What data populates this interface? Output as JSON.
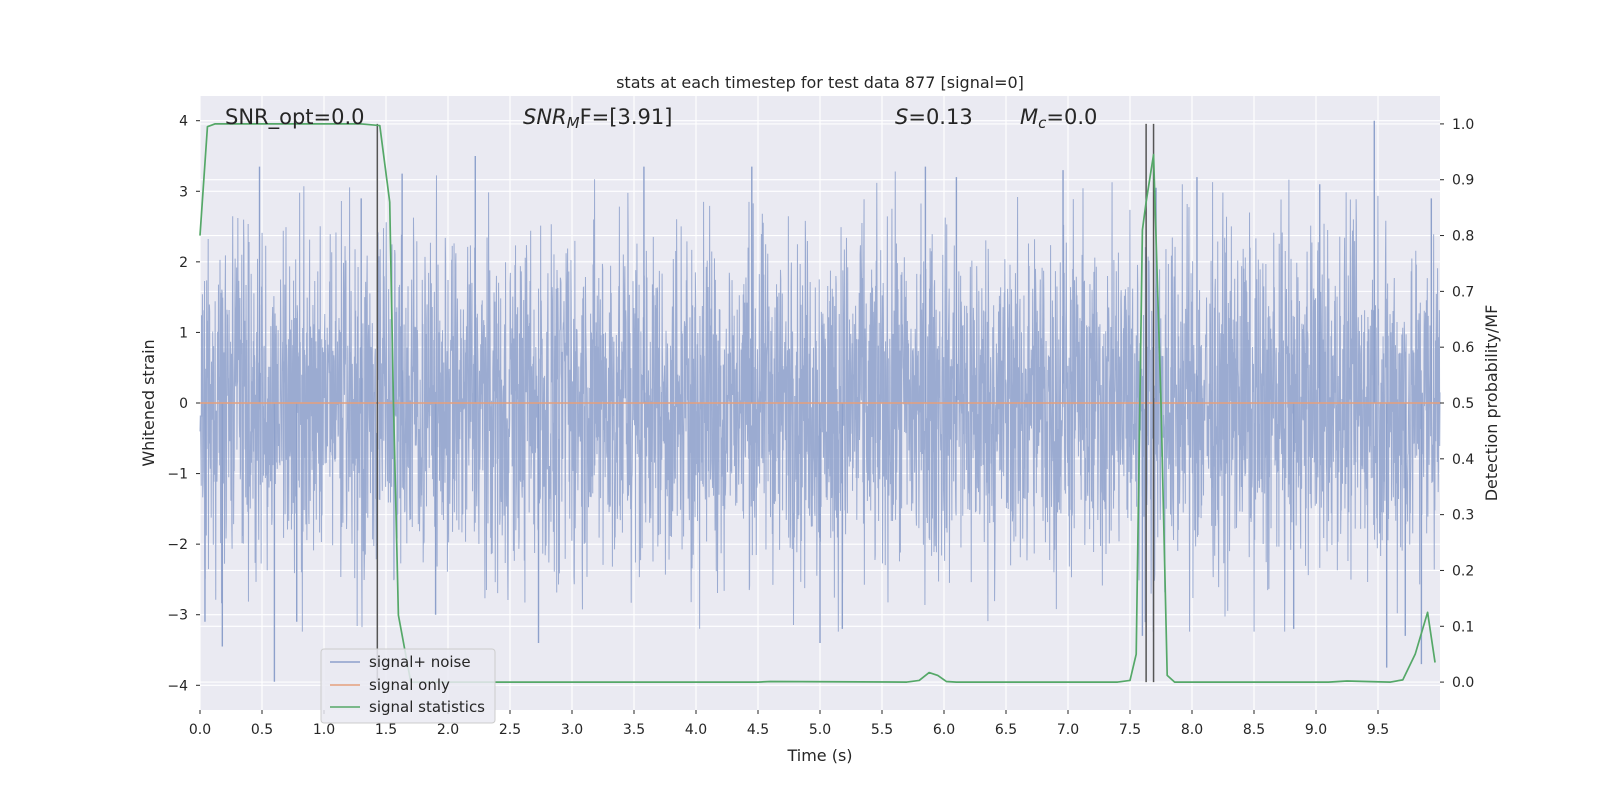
{
  "chart_data": {
    "type": "line",
    "title": "stats at each timestep for test data 877 [signal=0]",
    "xlabel": "Time (s)",
    "ylabel_left": "Whitened strain",
    "ylabel_right": "Detection probability/MF",
    "xlim": [
      0.0,
      10.0
    ],
    "ylim_left": [
      -4.35,
      4.35
    ],
    "ylim_right": [
      -0.05,
      1.05
    ],
    "x_ticks": [
      0.0,
      0.5,
      1.0,
      1.5,
      2.0,
      2.5,
      3.0,
      3.5,
      4.0,
      4.5,
      5.0,
      5.5,
      6.0,
      6.5,
      7.0,
      7.5,
      8.0,
      8.5,
      9.0,
      9.5
    ],
    "x_tick_labels": [
      "0.0",
      "0.5",
      "1.0",
      "1.5",
      "2.0",
      "2.5",
      "3.0",
      "3.5",
      "4.0",
      "4.5",
      "5.0",
      "5.5",
      "6.0",
      "6.5",
      "7.0",
      "7.5",
      "8.0",
      "8.5",
      "9.0",
      "9.5"
    ],
    "y_left_ticks": [
      -4,
      -3,
      -2,
      -1,
      0,
      1,
      2,
      3,
      4
    ],
    "y_left_tick_labels": [
      "−4",
      "−3",
      "−2",
      "−1",
      "0",
      "1",
      "2",
      "3",
      "4"
    ],
    "y_right_ticks": [
      0.0,
      0.1,
      0.2,
      0.3,
      0.4,
      0.5,
      0.6,
      0.7,
      0.8,
      0.9,
      1.0
    ],
    "y_right_tick_labels": [
      "0.0",
      "0.1",
      "0.2",
      "0.3",
      "0.4",
      "0.5",
      "0.6",
      "0.7",
      "0.8",
      "0.9",
      "1.0"
    ],
    "grid": true,
    "legend_position": "lower-left",
    "annotations": {
      "snr_opt": "SNR_opt=0.0",
      "snr_mf_sym": "SNR",
      "snr_mf_sub": "M",
      "snr_mf_rest": "F=[3.91]",
      "s_sym": "S",
      "s_rest": "=0.13",
      "mc_sym": "M",
      "mc_sub": "c",
      "mc_rest": "=0.0"
    },
    "vertical_markers": [
      1.43,
      7.63,
      7.69
    ],
    "series": [
      {
        "name": "signal+ noise",
        "color": "#8da0cb",
        "axis": "left",
        "style": "noise",
        "envelope": {
          "typical_abs": 1.6,
          "max": 4.0,
          "min": -3.95
        },
        "peaks": [
          [
            0.04,
            -3.1
          ],
          [
            0.18,
            -3.45
          ],
          [
            0.48,
            3.35
          ],
          [
            0.6,
            -3.95
          ],
          [
            0.78,
            -3.1
          ],
          [
            1.3,
            2.9
          ],
          [
            1.63,
            3.25
          ],
          [
            1.9,
            -3.0
          ],
          [
            2.22,
            3.5
          ],
          [
            2.73,
            -3.4
          ],
          [
            3.58,
            3.35
          ],
          [
            4.45,
            3.35
          ],
          [
            5.0,
            -3.4
          ],
          [
            5.18,
            -3.2
          ],
          [
            5.85,
            3.35
          ],
          [
            6.1,
            3.2
          ],
          [
            6.96,
            3.3
          ],
          [
            7.6,
            -3.3
          ],
          [
            7.71,
            3.05
          ],
          [
            8.04,
            3.2
          ],
          [
            8.82,
            -3.2
          ],
          [
            9.03,
            3.1
          ],
          [
            9.47,
            4.0
          ],
          [
            9.57,
            -3.75
          ],
          [
            9.72,
            -3.3
          ],
          [
            9.85,
            -3.7
          ],
          [
            9.93,
            2.9
          ]
        ]
      },
      {
        "name": "signal only",
        "color": "#e5a07d",
        "axis": "left",
        "x": [
          0.0,
          10.0
        ],
        "y": [
          0.0,
          0.0
        ]
      },
      {
        "name": "signal statistics",
        "color": "#55a868",
        "axis": "right",
        "x": [
          0.0,
          0.06,
          0.12,
          1.3,
          1.45,
          1.53,
          1.56,
          1.6,
          1.65,
          1.7,
          2.2,
          4.5,
          4.6,
          5.7,
          5.8,
          5.88,
          5.95,
          6.02,
          6.1,
          7.4,
          7.5,
          7.55,
          7.6,
          7.63,
          7.69,
          7.75,
          7.8,
          7.86,
          8.0,
          9.1,
          9.25,
          9.6,
          9.7,
          9.8,
          9.9,
          9.96
        ],
        "y": [
          0.8,
          0.995,
          1.0,
          1.0,
          0.997,
          0.86,
          0.5,
          0.12,
          0.06,
          0.0,
          0.0,
          0.0,
          0.001,
          0.0,
          0.003,
          0.017,
          0.012,
          0.001,
          0.0,
          0.0,
          0.003,
          0.05,
          0.81,
          0.86,
          0.945,
          0.5,
          0.012,
          0.0,
          0.0,
          0.0,
          0.002,
          0.0,
          0.004,
          0.05,
          0.125,
          0.035
        ]
      }
    ]
  }
}
